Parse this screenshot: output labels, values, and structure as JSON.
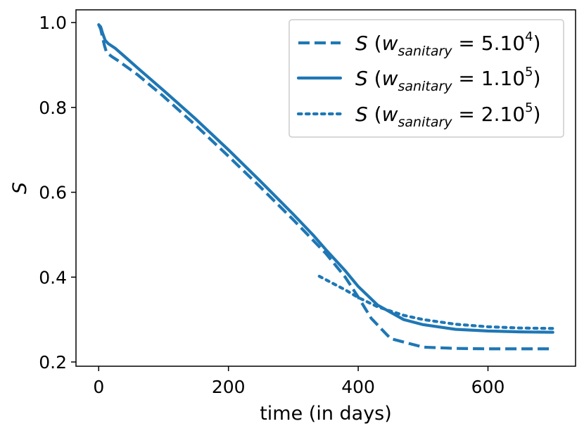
{
  "chart_data": {
    "type": "line",
    "title": "",
    "xlabel": "time (in days)",
    "ylabel": "S",
    "xlim": [
      -35,
      735
    ],
    "ylim": [
      0.19,
      1.03
    ],
    "xticks": [
      0,
      200,
      400,
      600
    ],
    "yticks": [
      0.2,
      0.4,
      0.6,
      0.8,
      1.0
    ],
    "xtick_labels": [
      "0",
      "200",
      "400",
      "600"
    ],
    "ytick_labels": [
      "0.2",
      "0.4",
      "0.6",
      "0.8",
      "1.0"
    ],
    "grid": false,
    "legend_position": "top-right",
    "line_color": "#1f77b4",
    "series": [
      {
        "name": "S (w_sanitary = 5.10^4)",
        "legend": {
          "var": "S",
          "sub": "sanitary",
          "value": "5.10",
          "exp": "4"
        },
        "style": "dashed",
        "x": [
          0,
          3,
          6,
          9,
          12,
          20,
          30,
          60,
          100,
          150,
          200,
          250,
          300,
          350,
          380,
          400,
          420,
          450,
          500,
          550,
          600,
          650,
          700
        ],
        "y": [
          0.995,
          0.985,
          0.965,
          0.945,
          0.93,
          0.92,
          0.91,
          0.877,
          0.826,
          0.757,
          0.685,
          0.611,
          0.535,
          0.456,
          0.4,
          0.353,
          0.303,
          0.255,
          0.235,
          0.232,
          0.231,
          0.231,
          0.231
        ]
      },
      {
        "name": "S (w_sanitary = 1.10^5)",
        "legend": {
          "var": "S",
          "sub": "sanitary",
          "value": "1.10",
          "exp": "5"
        },
        "style": "solid",
        "x": [
          0,
          3,
          6,
          10,
          15,
          25,
          40,
          60,
          100,
          150,
          200,
          250,
          300,
          330,
          350,
          380,
          400,
          430,
          470,
          500,
          550,
          600,
          650,
          700
        ],
        "y": [
          0.995,
          0.99,
          0.975,
          0.958,
          0.95,
          0.94,
          0.92,
          0.893,
          0.84,
          0.772,
          0.7,
          0.625,
          0.548,
          0.5,
          0.465,
          0.415,
          0.378,
          0.334,
          0.3,
          0.288,
          0.277,
          0.273,
          0.271,
          0.27
        ]
      },
      {
        "name": "S (w_sanitary = 2.10^5)",
        "legend": {
          "var": "S",
          "sub": "sanitary",
          "value": "2.10",
          "exp": "5"
        },
        "style": "dotted",
        "x": [
          340,
          360,
          380,
          400,
          430,
          470,
          500,
          550,
          600,
          650,
          700
        ],
        "y": [
          0.402,
          0.386,
          0.37,
          0.352,
          0.33,
          0.31,
          0.3,
          0.289,
          0.283,
          0.28,
          0.279
        ]
      }
    ]
  }
}
